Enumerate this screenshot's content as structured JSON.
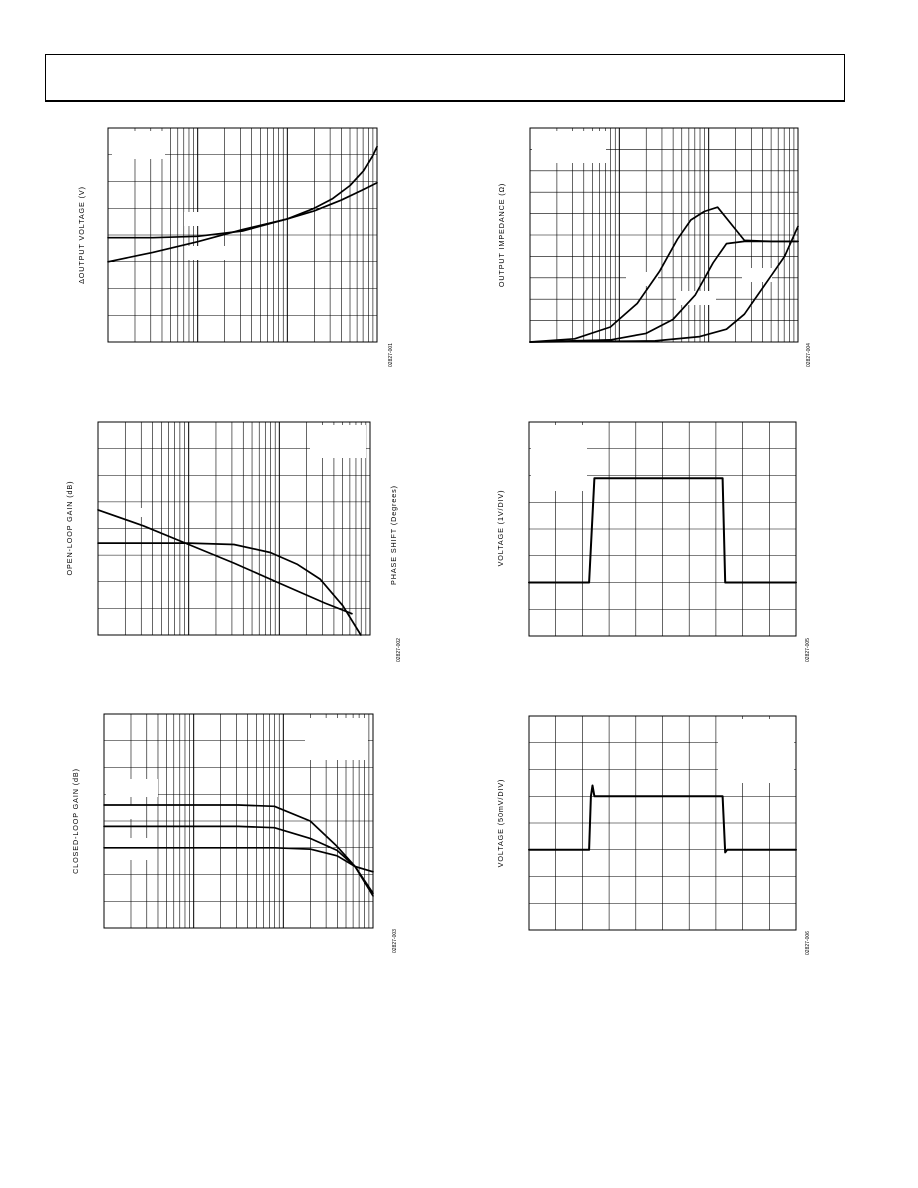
{
  "header": {
    "title": ""
  },
  "chart_data": [
    {
      "id": "fig1",
      "type": "line",
      "title": "",
      "xlabel": "",
      "ylabel": "ΔOUTPUT VOLTAGE (V)",
      "right_label": "",
      "code": "02827-001",
      "x_scale": "log",
      "x_decades": 3,
      "xlim": [
        0,
        3
      ],
      "ylim": [
        0,
        8
      ],
      "y_divisions": 8,
      "grid": true,
      "series": [
        {
          "x": [
            0.0,
            0.5,
            1.0,
            1.5,
            2.0,
            2.3,
            2.6,
            2.85,
            3.0
          ],
          "y": [
            3.9,
            3.9,
            3.95,
            4.15,
            4.6,
            4.9,
            5.3,
            5.7,
            5.95
          ]
        },
        {
          "x": [
            0.0,
            0.5,
            1.0,
            1.5,
            2.0,
            2.3,
            2.5,
            2.7,
            2.85,
            2.95,
            3.0
          ],
          "y": [
            3.0,
            3.35,
            3.75,
            4.2,
            4.6,
            5.0,
            5.35,
            5.85,
            6.4,
            6.95,
            7.3
          ]
        }
      ]
    },
    {
      "id": "fig2",
      "type": "line",
      "title": "",
      "xlabel": "",
      "ylabel": "OPEN-LOOP GAIN (dB)",
      "right_label": "PHASE SHIFT (Degrees)",
      "code": "02827-002",
      "x_scale": "log",
      "x_decades": 3,
      "xlim": [
        0,
        3
      ],
      "ylim": [
        0,
        8
      ],
      "y_divisions": 8,
      "grid": true,
      "series": [
        {
          "x": [
            0.0,
            0.5,
            1.0,
            1.5,
            2.0,
            2.5,
            2.8
          ],
          "y": [
            4.7,
            4.1,
            3.4,
            2.7,
            1.95,
            1.2,
            0.8
          ]
        },
        {
          "x": [
            0.0,
            0.5,
            1.0,
            1.5,
            1.9,
            2.2,
            2.45,
            2.7,
            2.9
          ],
          "y": [
            3.45,
            3.45,
            3.45,
            3.4,
            3.1,
            2.65,
            2.1,
            1.1,
            0.0
          ]
        }
      ]
    },
    {
      "id": "fig3",
      "type": "line",
      "title": "",
      "xlabel": "",
      "ylabel": "CLOSED-LOOP GAIN (dB)",
      "right_label": "",
      "code": "02827-003",
      "x_scale": "log",
      "x_decades": 3,
      "xlim": [
        0,
        3
      ],
      "ylim": [
        0,
        8
      ],
      "y_divisions": 8,
      "grid": true,
      "series": [
        {
          "x": [
            0.0,
            0.5,
            1.0,
            1.5,
            1.9,
            2.3,
            2.6,
            2.8,
            3.0
          ],
          "y": [
            4.6,
            4.6,
            4.6,
            4.6,
            4.55,
            4.0,
            3.05,
            2.3,
            1.2
          ]
        },
        {
          "x": [
            0.0,
            0.5,
            1.0,
            1.5,
            1.9,
            2.3,
            2.6,
            2.8,
            3.0
          ],
          "y": [
            3.8,
            3.8,
            3.8,
            3.8,
            3.75,
            3.35,
            2.9,
            2.3,
            1.3
          ]
        },
        {
          "x": [
            0.0,
            0.5,
            1.0,
            1.5,
            1.9,
            2.3,
            2.6,
            2.8,
            3.0
          ],
          "y": [
            3.0,
            3.0,
            3.0,
            3.0,
            3.0,
            2.95,
            2.7,
            2.3,
            2.1
          ]
        }
      ]
    },
    {
      "id": "fig4",
      "type": "line",
      "title": "",
      "xlabel": "",
      "ylabel": "OUTPUT IMPEDANCE (Ω)",
      "right_label": "",
      "code": "02827-004",
      "x_scale": "log",
      "x_decades": 3,
      "xlim": [
        0,
        3
      ],
      "ylim": [
        0,
        10
      ],
      "y_divisions": 10,
      "grid": true,
      "series": [
        {
          "x": [
            0.0,
            0.5,
            0.9,
            1.2,
            1.45,
            1.65,
            1.8,
            1.95,
            2.1,
            2.4,
            2.7,
            3.0
          ],
          "y": [
            0.0,
            0.15,
            0.7,
            1.8,
            3.3,
            4.8,
            5.7,
            6.1,
            6.3,
            4.75,
            4.7,
            4.7
          ]
        },
        {
          "x": [
            0.0,
            0.9,
            1.3,
            1.6,
            1.85,
            2.05,
            2.2,
            2.4,
            2.6,
            3.0
          ],
          "y": [
            0.0,
            0.1,
            0.4,
            1.05,
            2.2,
            3.7,
            4.6,
            4.7,
            4.7,
            4.7
          ]
        },
        {
          "x": [
            0.0,
            1.4,
            1.9,
            2.2,
            2.4,
            2.55,
            2.7,
            2.85,
            3.0
          ],
          "y": [
            0.0,
            0.05,
            0.25,
            0.6,
            1.3,
            2.2,
            3.1,
            4.0,
            5.4
          ]
        }
      ]
    },
    {
      "id": "fig5",
      "type": "line",
      "title": "",
      "xlabel": "",
      "ylabel": "VOLTAGE (1V/DIV)",
      "right_label": "",
      "code": "02827-005",
      "x_scale": "linear",
      "xlim": [
        0,
        10
      ],
      "ylim": [
        0,
        8
      ],
      "x_divisions": 10,
      "y_divisions": 8,
      "grid": true,
      "series": [
        {
          "x": [
            0,
            2.25,
            2.45,
            7.25,
            7.35,
            10
          ],
          "y": [
            2.0,
            2.0,
            5.9,
            5.9,
            2.0,
            2.0
          ]
        }
      ]
    },
    {
      "id": "fig6",
      "type": "line",
      "title": "",
      "xlabel": "",
      "ylabel": "VOLTAGE (50mV/DIV)",
      "right_label": "",
      "code": "02827-006",
      "x_scale": "linear",
      "xlim": [
        0,
        10
      ],
      "ylim": [
        0,
        8
      ],
      "x_divisions": 10,
      "y_divisions": 8,
      "grid": true,
      "series": [
        {
          "x": [
            0,
            2.25,
            2.32,
            2.38,
            2.45,
            7.25,
            7.35,
            7.42,
            10
          ],
          "y": [
            3.0,
            3.0,
            5.0,
            5.4,
            5.0,
            5.0,
            2.9,
            3.0,
            3.0
          ]
        }
      ]
    }
  ]
}
